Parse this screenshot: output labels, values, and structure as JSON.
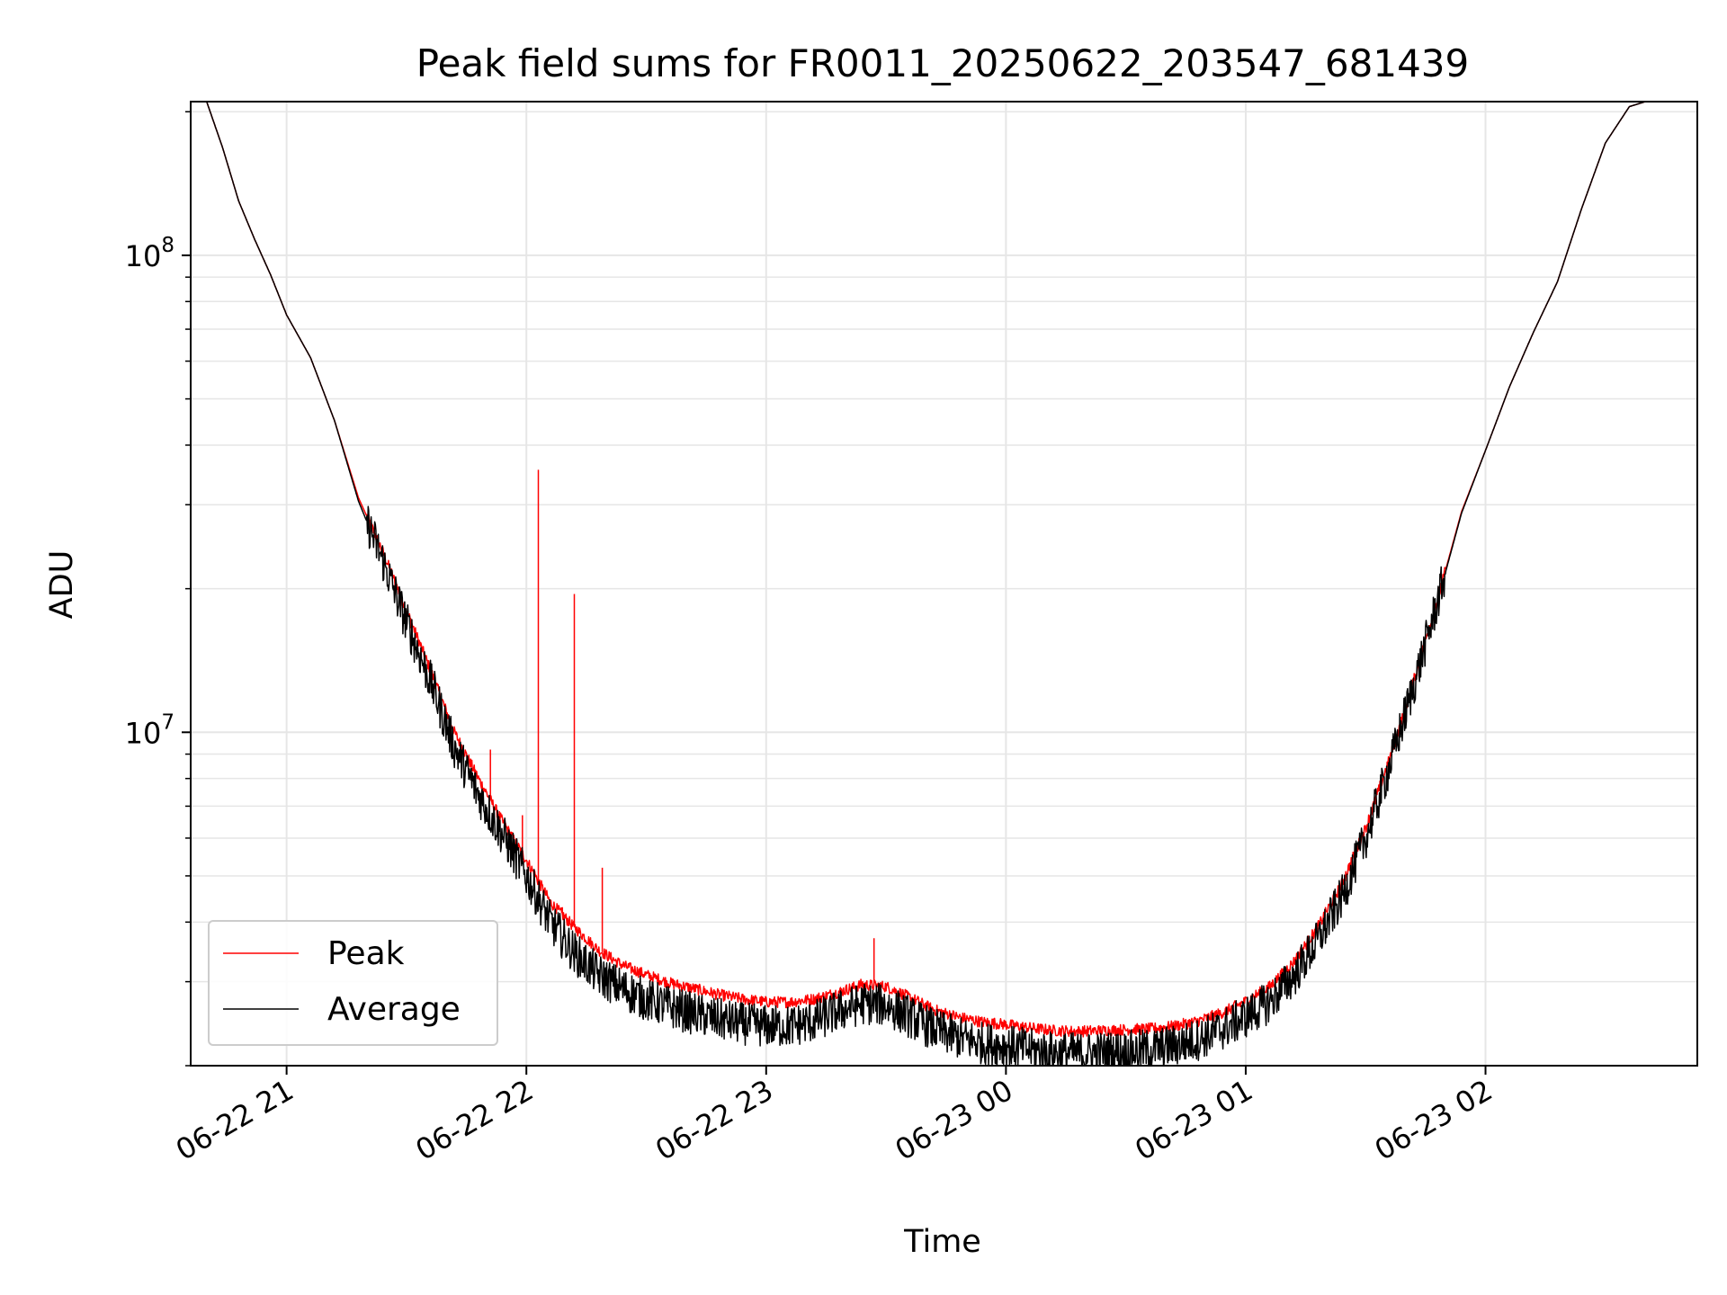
{
  "chart_data": {
    "type": "line",
    "title": "Peak field sums for FR0011_20250622_203547_681439",
    "xlabel": "Time",
    "ylabel": "ADU",
    "yscale": "log",
    "ylim": [
      2000000,
      210000000
    ],
    "xlim": [
      "2025-06-22 20:36",
      "2025-06-23 02:53"
    ],
    "grid": true,
    "legend_position": "bottom-left",
    "x_ticks": [
      {
        "t": "2025-06-22 21:00",
        "label": "06-22 21"
      },
      {
        "t": "2025-06-22 22:00",
        "label": "06-22 22"
      },
      {
        "t": "2025-06-22 23:00",
        "label": "06-22 23"
      },
      {
        "t": "2025-06-23 00:00",
        "label": "06-23 00"
      },
      {
        "t": "2025-06-23 01:00",
        "label": "06-23 01"
      },
      {
        "t": "2025-06-23 02:00",
        "label": "06-23 02"
      }
    ],
    "y_ticks": [
      {
        "value": 10000000,
        "base": "10",
        "exp": "7"
      },
      {
        "value": 100000000,
        "base": "10",
        "exp": "8"
      }
    ],
    "series": [
      {
        "name": "Peak",
        "color": "#ff0000",
        "points": [
          [
            "2025-06-22 20:40",
            210000000
          ],
          [
            "2025-06-22 20:44",
            168000000
          ],
          [
            "2025-06-22 20:48",
            130000000
          ],
          [
            "2025-06-22 20:52",
            108000000
          ],
          [
            "2025-06-22 20:56",
            91000000
          ],
          [
            "2025-06-22 21:00",
            75000000
          ],
          [
            "2025-06-22 21:06",
            61000000
          ],
          [
            "2025-06-22 21:12",
            45000000
          ],
          [
            "2025-06-22 21:18",
            31000000
          ],
          [
            "2025-06-22 21:24",
            24000000
          ],
          [
            "2025-06-22 21:30",
            18000000
          ],
          [
            "2025-06-22 21:36",
            13500000
          ],
          [
            "2025-06-22 21:42",
            10000000
          ],
          [
            "2025-06-22 21:48",
            8000000
          ],
          [
            "2025-06-22 21:54",
            6500000
          ],
          [
            "2025-06-22 22:00",
            5400000
          ],
          [
            "2025-06-22 22:06",
            4400000
          ],
          [
            "2025-06-22 22:12",
            3900000
          ],
          [
            "2025-06-22 22:18",
            3500000
          ],
          [
            "2025-06-22 22:24",
            3250000
          ],
          [
            "2025-06-22 22:30",
            3100000
          ],
          [
            "2025-06-22 22:36",
            2980000
          ],
          [
            "2025-06-22 22:42",
            2900000
          ],
          [
            "2025-06-22 22:48",
            2820000
          ],
          [
            "2025-06-22 22:54",
            2760000
          ],
          [
            "2025-06-22 23:00",
            2720000
          ],
          [
            "2025-06-22 23:06",
            2720000
          ],
          [
            "2025-06-22 23:12",
            2760000
          ],
          [
            "2025-06-22 23:18",
            2850000
          ],
          [
            "2025-06-22 23:24",
            2960000
          ],
          [
            "2025-06-22 23:30",
            2930000
          ],
          [
            "2025-06-22 23:36",
            2780000
          ],
          [
            "2025-06-22 23:42",
            2620000
          ],
          [
            "2025-06-22 23:48",
            2530000
          ],
          [
            "2025-06-22 23:54",
            2470000
          ],
          [
            "2025-06-23 00:00",
            2440000
          ],
          [
            "2025-06-23 00:06",
            2400000
          ],
          [
            "2025-06-23 00:12",
            2370000
          ],
          [
            "2025-06-23 00:18",
            2360000
          ],
          [
            "2025-06-23 00:24",
            2370000
          ],
          [
            "2025-06-23 00:30",
            2380000
          ],
          [
            "2025-06-23 00:36",
            2390000
          ],
          [
            "2025-06-23 00:42",
            2420000
          ],
          [
            "2025-06-23 00:48",
            2480000
          ],
          [
            "2025-06-23 00:54",
            2580000
          ],
          [
            "2025-06-23 01:00",
            2730000
          ],
          [
            "2025-06-23 01:06",
            2930000
          ],
          [
            "2025-06-23 01:12",
            3300000
          ],
          [
            "2025-06-23 01:18",
            3900000
          ],
          [
            "2025-06-23 01:24",
            4800000
          ],
          [
            "2025-06-23 01:30",
            6300000
          ],
          [
            "2025-06-23 01:36",
            8800000
          ],
          [
            "2025-06-23 01:42",
            12800000
          ],
          [
            "2025-06-23 01:48",
            19000000
          ],
          [
            "2025-06-23 01:54",
            29000000
          ],
          [
            "2025-06-23 02:00",
            39000000
          ],
          [
            "2025-06-23 02:06",
            53000000
          ],
          [
            "2025-06-23 02:12",
            69000000
          ],
          [
            "2025-06-23 02:18",
            88000000
          ],
          [
            "2025-06-23 02:24",
            125000000
          ],
          [
            "2025-06-23 02:30",
            172000000
          ],
          [
            "2025-06-23 02:36",
            205000000
          ],
          [
            "2025-06-23 02:40",
            210000000
          ]
        ],
        "spikes": [
          [
            "2025-06-22 21:51",
            9200000
          ],
          [
            "2025-06-22 21:59",
            6700000
          ],
          [
            "2025-06-22 22:03",
            35500000
          ],
          [
            "2025-06-22 22:09",
            4300000
          ],
          [
            "2025-06-22 22:12",
            19500000
          ],
          [
            "2025-06-22 22:19",
            5200000
          ],
          [
            "2025-06-22 23:27",
            3700000
          ]
        ]
      },
      {
        "name": "Average",
        "color": "#000000",
        "points": [
          [
            "2025-06-22 20:40",
            210000000
          ],
          [
            "2025-06-22 20:44",
            168000000
          ],
          [
            "2025-06-22 20:48",
            130000000
          ],
          [
            "2025-06-22 20:52",
            108000000
          ],
          [
            "2025-06-22 20:56",
            91000000
          ],
          [
            "2025-06-22 21:00",
            75000000
          ],
          [
            "2025-06-22 21:06",
            61000000
          ],
          [
            "2025-06-22 21:12",
            45000000
          ],
          [
            "2025-06-22 21:18",
            30500000
          ],
          [
            "2025-06-22 21:24",
            23000000
          ],
          [
            "2025-06-22 21:30",
            17000000
          ],
          [
            "2025-06-22 21:36",
            12800000
          ],
          [
            "2025-06-22 21:42",
            9300000
          ],
          [
            "2025-06-22 21:48",
            7400000
          ],
          [
            "2025-06-22 21:54",
            6100000
          ],
          [
            "2025-06-22 22:00",
            5000000
          ],
          [
            "2025-06-22 22:06",
            4000000
          ],
          [
            "2025-06-22 22:12",
            3450000
          ],
          [
            "2025-06-22 22:18",
            3100000
          ],
          [
            "2025-06-22 22:24",
            2900000
          ],
          [
            "2025-06-22 22:30",
            2750000
          ],
          [
            "2025-06-22 22:36",
            2650000
          ],
          [
            "2025-06-22 22:42",
            2570000
          ],
          [
            "2025-06-22 22:48",
            2500000
          ],
          [
            "2025-06-22 22:54",
            2450000
          ],
          [
            "2025-06-22 23:00",
            2420000
          ],
          [
            "2025-06-22 23:06",
            2420000
          ],
          [
            "2025-06-22 23:12",
            2480000
          ],
          [
            "2025-06-22 23:18",
            2600000
          ],
          [
            "2025-06-22 23:24",
            2700000
          ],
          [
            "2025-06-22 23:30",
            2680000
          ],
          [
            "2025-06-22 23:36",
            2530000
          ],
          [
            "2025-06-22 23:42",
            2380000
          ],
          [
            "2025-06-22 23:48",
            2290000
          ],
          [
            "2025-06-22 23:54",
            2230000
          ],
          [
            "2025-06-23 00:00",
            2200000
          ],
          [
            "2025-06-23 00:06",
            2160000
          ],
          [
            "2025-06-23 00:12",
            2130000
          ],
          [
            "2025-06-23 00:18",
            2120000
          ],
          [
            "2025-06-23 00:24",
            2130000
          ],
          [
            "2025-06-23 00:30",
            2140000
          ],
          [
            "2025-06-23 00:36",
            2160000
          ],
          [
            "2025-06-23 00:42",
            2200000
          ],
          [
            "2025-06-23 00:48",
            2270000
          ],
          [
            "2025-06-23 00:54",
            2380000
          ],
          [
            "2025-06-23 01:00",
            2530000
          ],
          [
            "2025-06-23 01:06",
            2720000
          ],
          [
            "2025-06-23 01:12",
            3080000
          ],
          [
            "2025-06-23 01:18",
            3650000
          ],
          [
            "2025-06-23 01:24",
            4500000
          ],
          [
            "2025-06-23 01:30",
            6000000
          ],
          [
            "2025-06-23 01:36",
            8500000
          ],
          [
            "2025-06-23 01:42",
            12500000
          ],
          [
            "2025-06-23 01:48",
            18800000
          ],
          [
            "2025-06-23 01:54",
            28800000
          ],
          [
            "2025-06-23 02:00",
            39000000
          ],
          [
            "2025-06-23 02:06",
            53000000
          ],
          [
            "2025-06-23 02:12",
            69000000
          ],
          [
            "2025-06-23 02:18",
            88000000
          ],
          [
            "2025-06-23 02:24",
            125000000
          ],
          [
            "2025-06-23 02:30",
            172000000
          ],
          [
            "2025-06-23 02:36",
            205000000
          ],
          [
            "2025-06-23 02:40",
            210000000
          ]
        ]
      }
    ]
  }
}
